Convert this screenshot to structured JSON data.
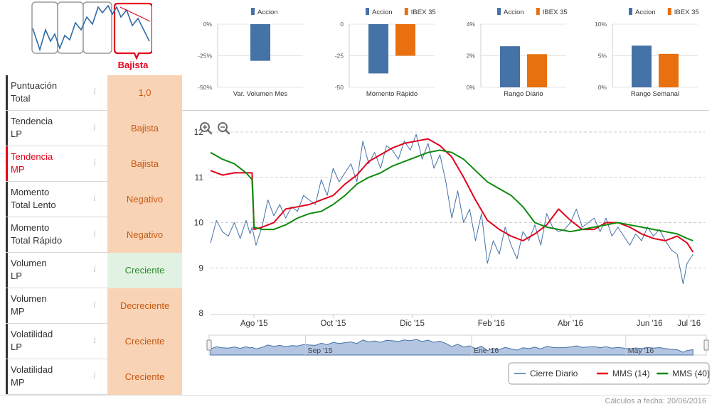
{
  "trend": {
    "label": "Bajista",
    "colors": {
      "active": "#e3001b",
      "line": "#2e6aa6",
      "frame": "#9a9a9a"
    }
  },
  "scores": [
    {
      "name": "Puntuación Total",
      "l1": "Puntuación",
      "l2": "Total",
      "value": "1,0",
      "tone": "negative",
      "active": false
    },
    {
      "name": "Tendencia LP",
      "l1": "Tendencia",
      "l2": "LP",
      "value": "Bajista",
      "tone": "negative",
      "active": false
    },
    {
      "name": "Tendencia MP",
      "l1": "Tendencia",
      "l2": "MP",
      "value": "Bajista",
      "tone": "negative",
      "active": true
    },
    {
      "name": "Momento Total Lento",
      "l1": "Momento",
      "l2": "Total Lento",
      "value": "Negativo",
      "tone": "negative",
      "active": false
    },
    {
      "name": "Momento Total Rápido",
      "l1": "Momento",
      "l2": "Total Rápido",
      "value": "Negativo",
      "tone": "negative",
      "active": false
    },
    {
      "name": "Volumen LP",
      "l1": "Volumen",
      "l2": "LP",
      "value": "Creciente",
      "tone": "positive",
      "active": false
    },
    {
      "name": "Volumen MP",
      "l1": "Volumen",
      "l2": "MP",
      "value": "Decreciente",
      "tone": "negative",
      "active": false
    },
    {
      "name": "Volatilidad LP",
      "l1": "Volatilidad",
      "l2": "LP",
      "value": "Creciente",
      "tone": "negative",
      "active": false
    },
    {
      "name": "Volatilidad MP",
      "l1": "Volatilidad",
      "l2": "MP",
      "value": "Creciente",
      "tone": "negative",
      "active": false
    }
  ],
  "info_glyph": "i",
  "chart_data": [
    {
      "type": "bar",
      "title": "Var. Volumen Mes",
      "categories": [
        "Var. Volumen Mes"
      ],
      "series": [
        {
          "name": "Accion",
          "color": "#4572a7",
          "values": [
            -29
          ]
        }
      ],
      "ylim": [
        -50,
        0
      ],
      "ticks": [
        0,
        -25,
        -50
      ],
      "tick_labels": [
        "0%",
        "-25%",
        "-50%"
      ]
    },
    {
      "type": "bar",
      "title": "Momento Rápido",
      "categories": [
        "Momento Rápido"
      ],
      "series": [
        {
          "name": "Accion",
          "color": "#4572a7",
          "values": [
            -39
          ]
        },
        {
          "name": "IBEX 35",
          "color": "#e8700f",
          "values": [
            -25
          ]
        }
      ],
      "ylim": [
        -50,
        0
      ],
      "ticks": [
        0,
        -25,
        -50
      ],
      "tick_labels": [
        "0",
        "-25",
        "-50"
      ]
    },
    {
      "type": "bar",
      "title": "Rango Diario",
      "categories": [
        "Rango Diario"
      ],
      "series": [
        {
          "name": "Accion",
          "color": "#4572a7",
          "values": [
            2.6
          ]
        },
        {
          "name": "IBEX 35",
          "color": "#e8700f",
          "values": [
            2.1
          ]
        }
      ],
      "ylim": [
        0,
        4
      ],
      "ticks": [
        4,
        2,
        0
      ],
      "tick_labels": [
        "4%",
        "2%",
        "0%"
      ]
    },
    {
      "type": "bar",
      "title": "Rango Semanal",
      "categories": [
        "Rango Semanal"
      ],
      "series": [
        {
          "name": "Accion",
          "color": "#4572a7",
          "values": [
            6.6
          ]
        },
        {
          "name": "IBEX 35",
          "color": "#e8700f",
          "values": [
            5.3
          ]
        }
      ],
      "ylim": [
        0,
        10
      ],
      "ticks": [
        10,
        5,
        0
      ],
      "tick_labels": [
        "10%",
        "5%",
        "0%"
      ]
    },
    {
      "type": "line",
      "title": "",
      "ylim": [
        8,
        12
      ],
      "yticks": [
        8,
        9,
        10,
        11,
        12
      ],
      "x_range": [
        0,
        12.5
      ],
      "x_ticks": [
        {
          "label": "Ago '15",
          "x": 1.1
        },
        {
          "label": "Oct '15",
          "x": 3.1
        },
        {
          "label": "Dic '15",
          "x": 5.1
        },
        {
          "label": "Feb '16",
          "x": 7.1
        },
        {
          "label": "Abr '16",
          "x": 9.1
        },
        {
          "label": "Jun '16",
          "x": 11.1
        },
        {
          "label": "Jul '16",
          "x": 12.1
        }
      ],
      "navigator_labels": [
        {
          "label": "Sep '15",
          "x": 2.4
        },
        {
          "label": "Ene '16",
          "x": 6.6
        },
        {
          "label": "May '16",
          "x": 10.5
        }
      ],
      "legend": [
        "Cierre Diario",
        "MMS (14)",
        "MMS (40)"
      ],
      "series": [
        {
          "name": "Cierre Diario",
          "color": "#4572a7",
          "x": [
            0,
            0.15,
            0.3,
            0.45,
            0.6,
            0.75,
            0.9,
            1.0,
            1.05,
            1.15,
            1.3,
            1.45,
            1.6,
            1.75,
            1.9,
            2.05,
            2.2,
            2.35,
            2.5,
            2.65,
            2.8,
            2.95,
            3.1,
            3.25,
            3.4,
            3.55,
            3.7,
            3.85,
            4.0,
            4.15,
            4.3,
            4.45,
            4.6,
            4.75,
            4.9,
            5.05,
            5.2,
            5.35,
            5.5,
            5.65,
            5.8,
            5.95,
            6.1,
            6.25,
            6.4,
            6.55,
            6.7,
            6.85,
            7.0,
            7.15,
            7.3,
            7.45,
            7.6,
            7.75,
            7.9,
            8.05,
            8.2,
            8.35,
            8.5,
            8.65,
            8.8,
            8.95,
            9.1,
            9.25,
            9.4,
            9.55,
            9.7,
            9.85,
            10.0,
            10.15,
            10.3,
            10.45,
            10.6,
            10.75,
            10.9,
            11.05,
            11.2,
            11.35,
            11.5,
            11.65,
            11.8,
            11.95,
            12.05,
            12.2
          ],
          "y": [
            9.55,
            10.05,
            9.8,
            9.7,
            10.0,
            9.65,
            10.05,
            9.75,
            9.9,
            9.5,
            9.9,
            10.5,
            10.15,
            10.4,
            10.1,
            10.35,
            10.25,
            10.6,
            10.5,
            10.4,
            10.95,
            10.6,
            11.2,
            10.9,
            11.1,
            11.3,
            10.9,
            11.8,
            11.3,
            11.55,
            11.2,
            11.7,
            11.6,
            11.4,
            11.8,
            11.6,
            11.95,
            11.4,
            11.75,
            11.2,
            11.5,
            10.9,
            10.1,
            10.7,
            10.0,
            10.3,
            9.6,
            10.2,
            9.1,
            9.6,
            9.3,
            9.9,
            9.5,
            9.2,
            9.8,
            9.6,
            9.95,
            9.5,
            10.2,
            9.9,
            9.8,
            9.85,
            10.0,
            10.3,
            9.9,
            10.0,
            10.1,
            9.8,
            10.1,
            9.7,
            9.9,
            9.7,
            9.5,
            9.75,
            9.6,
            9.9,
            9.7,
            9.85,
            9.6,
            9.4,
            9.3,
            8.65,
            9.1,
            9.3
          ]
        },
        {
          "name": "MMS (14)",
          "color": "#e3001b",
          "x": [
            0,
            0.3,
            0.6,
            0.9,
            1.05,
            1.1,
            1.3,
            1.6,
            1.9,
            2.2,
            2.5,
            2.8,
            3.1,
            3.4,
            3.7,
            4.0,
            4.3,
            4.6,
            4.9,
            5.2,
            5.5,
            5.8,
            6.1,
            6.4,
            6.7,
            7.0,
            7.3,
            7.6,
            7.9,
            8.2,
            8.5,
            8.8,
            9.1,
            9.4,
            9.7,
            10.0,
            10.3,
            10.6,
            10.9,
            11.2,
            11.5,
            11.8,
            12.05,
            12.2
          ],
          "y": [
            11.15,
            11.05,
            11.1,
            11.1,
            11.1,
            9.85,
            9.9,
            10.0,
            10.3,
            10.35,
            10.4,
            10.5,
            10.6,
            10.85,
            11.05,
            11.35,
            11.5,
            11.65,
            11.75,
            11.8,
            11.85,
            11.7,
            11.45,
            11.0,
            10.5,
            10.05,
            9.85,
            9.7,
            9.6,
            9.75,
            9.95,
            10.3,
            10.05,
            9.85,
            9.85,
            10.0,
            10.0,
            9.9,
            9.75,
            9.65,
            9.6,
            9.7,
            9.55,
            9.35
          ]
        },
        {
          "name": "MMS (40)",
          "color": "#0f8a0f",
          "x": [
            0,
            0.3,
            0.6,
            0.9,
            1.05,
            1.1,
            1.3,
            1.6,
            1.9,
            2.2,
            2.5,
            2.8,
            3.1,
            3.4,
            3.7,
            4.0,
            4.3,
            4.6,
            4.9,
            5.2,
            5.5,
            5.8,
            6.1,
            6.4,
            6.7,
            7.0,
            7.3,
            7.6,
            7.9,
            8.2,
            8.5,
            8.8,
            9.1,
            9.4,
            9.7,
            10.0,
            10.3,
            10.6,
            10.9,
            11.2,
            11.5,
            11.8,
            12.05,
            12.2
          ],
          "y": [
            11.55,
            11.4,
            11.3,
            11.1,
            10.95,
            9.9,
            9.85,
            9.85,
            9.95,
            10.1,
            10.2,
            10.25,
            10.4,
            10.6,
            10.85,
            11.0,
            11.1,
            11.25,
            11.35,
            11.45,
            11.55,
            11.6,
            11.55,
            11.4,
            11.15,
            10.9,
            10.75,
            10.6,
            10.35,
            10.0,
            9.9,
            9.85,
            9.8,
            9.85,
            9.9,
            9.95,
            10.0,
            9.95,
            9.9,
            9.85,
            9.8,
            9.75,
            9.65,
            9.6
          ]
        }
      ]
    }
  ],
  "footer": {
    "text": "Cálculos a fecha: 20/06/2016"
  }
}
